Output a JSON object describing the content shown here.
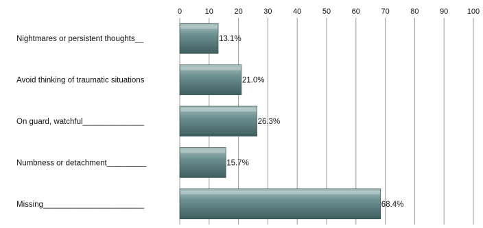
{
  "chart_data": {
    "type": "bar",
    "orientation": "horizontal",
    "title": "",
    "xlabel": "",
    "ylabel": "",
    "xlim": [
      0,
      100
    ],
    "x_ticks": [
      0,
      10,
      20,
      30,
      40,
      50,
      60,
      70,
      80,
      90,
      100
    ],
    "x_axis_position": "top",
    "grid": true,
    "legend": "none",
    "categories": [
      "Nightmares or persistent thoughts__",
      "Avoid thinking of traumatic situations",
      "On guard, watchful______________",
      "Numbness or detachment_________",
      "Missing_______________________"
    ],
    "values": [
      13.1,
      21.0,
      26.3,
      15.7,
      68.4
    ],
    "value_labels": [
      "13.1%",
      "21.0%",
      "26.3%",
      "15.7%",
      "68.4%"
    ],
    "colors": {
      "bar_top": "#a9c0c0",
      "bar_mid": "#6c8f8f",
      "bar_bottom": "#3f5f5f",
      "gridline": "#9a9a9a",
      "text": "#111111"
    }
  }
}
